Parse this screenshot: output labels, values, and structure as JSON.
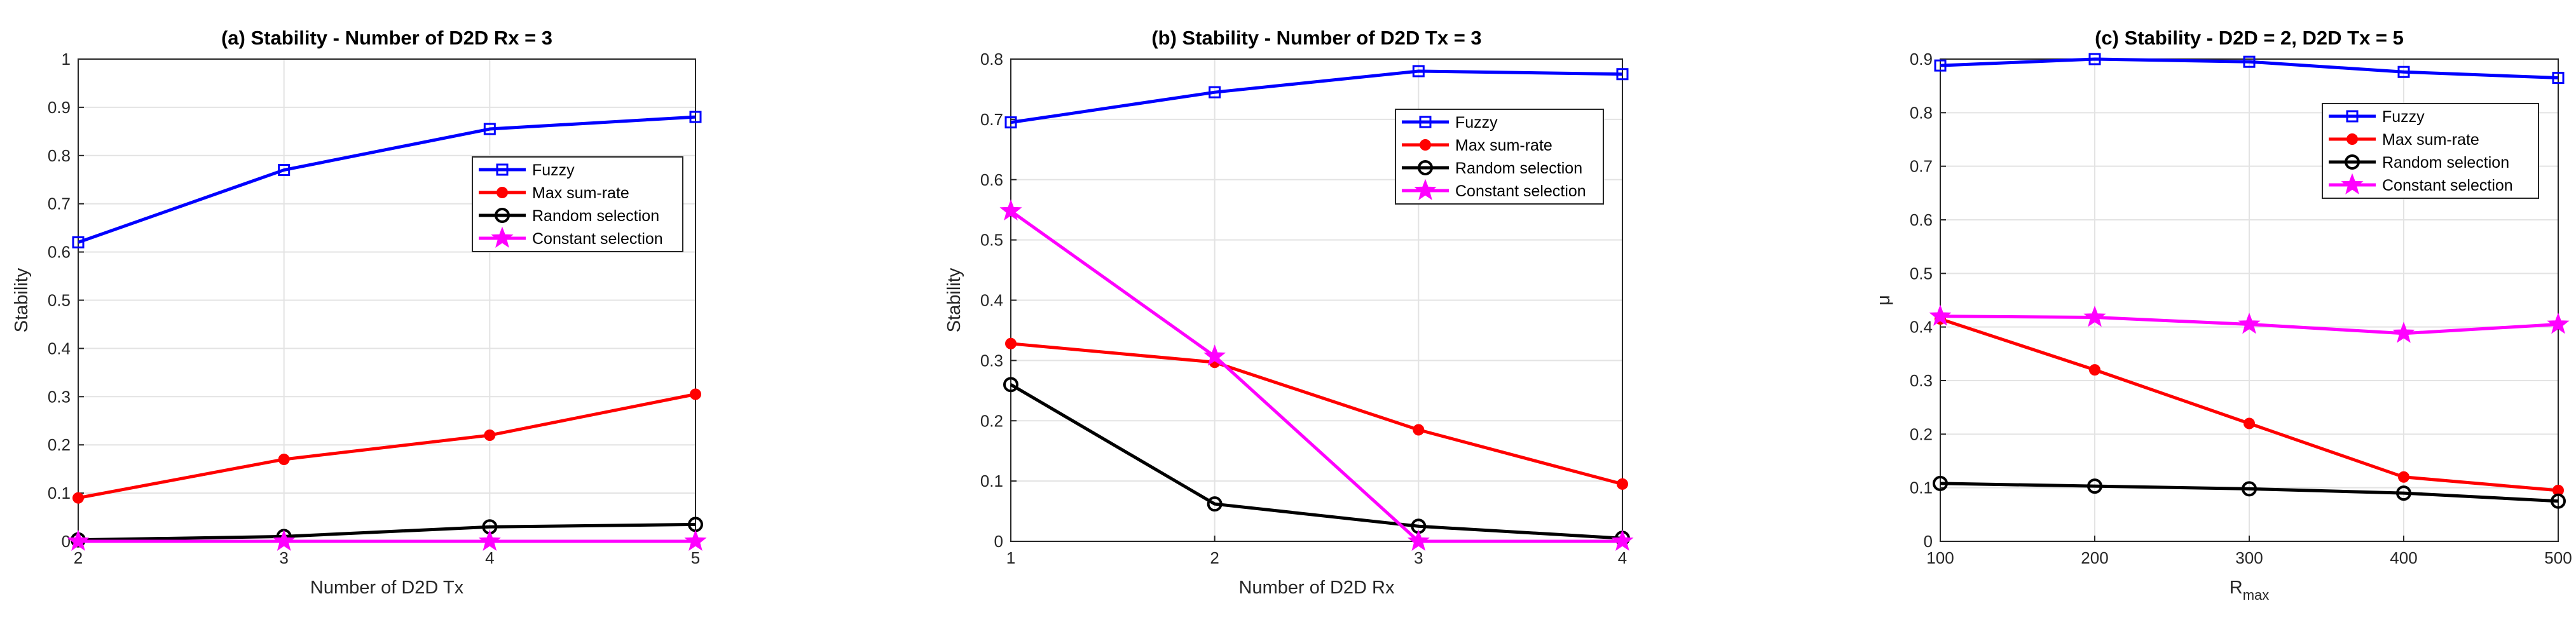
{
  "chart_data": [
    {
      "type": "line",
      "title": "(a) Stability - Number of D2D Rx = 3",
      "xlabel": "Number of D2D Tx",
      "ylabel": "Stability",
      "x": [
        2,
        3,
        4,
        5
      ],
      "xlim": [
        2,
        5
      ],
      "ylim": [
        0,
        1
      ],
      "xticks": [
        "2",
        "3",
        "4",
        "5"
      ],
      "yticks": [
        "0",
        "0.1",
        "0.2",
        "0.3",
        "0.4",
        "0.5",
        "0.6",
        "0.7",
        "0.8",
        "0.9",
        "1"
      ],
      "grid": true,
      "legend_position": "upper-right",
      "series": [
        {
          "name": "Fuzzy",
          "color": "#0000ff",
          "marker": "square",
          "values": [
            0.62,
            0.77,
            0.855,
            0.88
          ]
        },
        {
          "name": "Max sum-rate",
          "color": "#ff0000",
          "marker": "filled-circle",
          "values": [
            0.09,
            0.17,
            0.22,
            0.305
          ]
        },
        {
          "name": "Random selection",
          "color": "#000000",
          "marker": "circle",
          "values": [
            0.003,
            0.01,
            0.03,
            0.035
          ]
        },
        {
          "name": "Constant selection",
          "color": "#ff00ff",
          "marker": "star",
          "values": [
            0,
            0,
            0,
            0
          ]
        }
      ]
    },
    {
      "type": "line",
      "title": "(b) Stability - Number of D2D Tx = 3",
      "xlabel": "Number of D2D Rx",
      "ylabel": "Stability",
      "x": [
        1,
        2,
        3,
        4
      ],
      "xlim": [
        1,
        4
      ],
      "ylim": [
        0,
        0.8
      ],
      "xticks": [
        "1",
        "2",
        "3",
        "4"
      ],
      "yticks": [
        "0",
        "0.1",
        "0.2",
        "0.3",
        "0.4",
        "0.5",
        "0.6",
        "0.7",
        "0.8"
      ],
      "grid": true,
      "legend_position": "upper-right",
      "series": [
        {
          "name": "Fuzzy",
          "color": "#0000ff",
          "marker": "square",
          "values": [
            0.695,
            0.745,
            0.78,
            0.775
          ]
        },
        {
          "name": "Max sum-rate",
          "color": "#ff0000",
          "marker": "filled-circle",
          "values": [
            0.328,
            0.297,
            0.185,
            0.095
          ]
        },
        {
          "name": "Random selection",
          "color": "#000000",
          "marker": "circle",
          "values": [
            0.26,
            0.062,
            0.025,
            0.005
          ]
        },
        {
          "name": "Constant selection",
          "color": "#ff00ff",
          "marker": "star",
          "values": [
            0.548,
            0.307,
            0,
            0
          ]
        }
      ]
    },
    {
      "type": "line",
      "title": "(c) Stability - D2D = 2, D2D Tx = 5",
      "xlabel": "R",
      "xlabel_sub": "max",
      "ylabel": "μ",
      "x": [
        100,
        200,
        300,
        400,
        500
      ],
      "xlim": [
        100,
        500
      ],
      "ylim": [
        0,
        0.9
      ],
      "xticks": [
        "100",
        "200",
        "300",
        "400",
        "500"
      ],
      "yticks": [
        "0",
        "0.1",
        "0.2",
        "0.3",
        "0.4",
        "0.5",
        "0.6",
        "0.7",
        "0.8",
        "0.9"
      ],
      "grid": true,
      "legend_position": "upper-right",
      "series": [
        {
          "name": "Fuzzy",
          "color": "#0000ff",
          "marker": "square",
          "values": [
            0.888,
            0.9,
            0.895,
            0.876,
            0.865
          ]
        },
        {
          "name": "Max sum-rate",
          "color": "#ff0000",
          "marker": "filled-circle",
          "values": [
            0.415,
            0.32,
            0.22,
            0.12,
            0.095
          ]
        },
        {
          "name": "Random selection",
          "color": "#000000",
          "marker": "circle",
          "values": [
            0.108,
            0.103,
            0.098,
            0.09,
            0.075
          ]
        },
        {
          "name": "Constant selection",
          "color": "#ff00ff",
          "marker": "star",
          "values": [
            0.42,
            0.418,
            0.405,
            0.388,
            0.405
          ]
        }
      ]
    }
  ]
}
